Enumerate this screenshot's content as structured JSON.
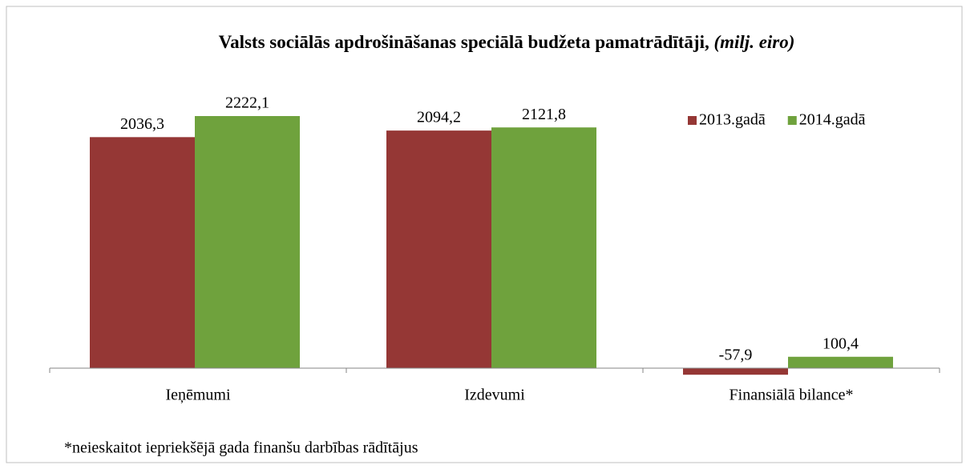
{
  "chart_data": {
    "type": "bar",
    "title": "Valsts sociālās apdrošināšanas speciālā budžeta pamatrādītāji,",
    "title_unit": "(milj. eiro)",
    "categories": [
      "Ieņēmumi",
      "Izdevumi",
      "Finansiālā bilance*"
    ],
    "series": [
      {
        "name": "2013.gadā",
        "color": "#953735",
        "values": [
          2036.3,
          2094.2,
          -57.9
        ],
        "value_labels": [
          "2036,3",
          "2094,2",
          "-57,9"
        ]
      },
      {
        "name": "2014.gadā",
        "color": "#6fa23d",
        "values": [
          2222.1,
          2121.8,
          100.4
        ],
        "value_labels": [
          "2222,1",
          "2121,8",
          "100,4"
        ]
      }
    ],
    "legend": "top-right",
    "note": "*neieskaitot iepriekšējā gada finanšu darbības rādītājus"
  }
}
